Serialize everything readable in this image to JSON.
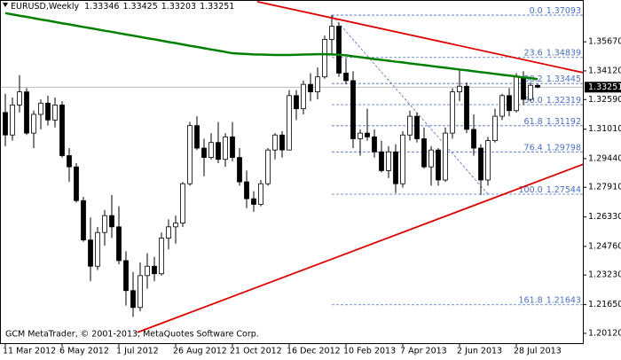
{
  "chart_data": {
    "type": "candlestick",
    "title": "EURUSD,Weekly",
    "footer": "GCM MetaTrader, © 2001-2013, MetaQuotes Software Corp.",
    "categories": [
      "11 Mar 2012",
      null,
      null,
      null,
      null,
      null,
      null,
      null,
      "6 May 2012",
      null,
      null,
      null,
      null,
      null,
      null,
      null,
      "1 Jul 2012",
      null,
      null,
      null,
      null,
      null,
      null,
      null,
      "26 Aug 2012",
      null,
      null,
      null,
      null,
      null,
      null,
      null,
      "21 Oct 2012",
      null,
      null,
      null,
      null,
      null,
      null,
      null,
      "16 Dec 2012",
      null,
      null,
      null,
      null,
      null,
      null,
      null,
      "10 Feb 2013",
      null,
      null,
      null,
      null,
      null,
      null,
      null,
      "7 Apr 2013",
      null,
      null,
      null,
      null,
      null,
      null,
      null,
      "2 Jun 2013",
      null,
      null,
      null,
      null,
      null,
      null,
      null,
      "28 Jul 2013",
      null,
      null,
      null
    ],
    "open": [
      1.319,
      1.307,
      1.323,
      1.33,
      1.308,
      1.318,
      1.324,
      1.315,
      1.323,
      1.296,
      1.29,
      1.272,
      1.251,
      1.237,
      1.255,
      1.264,
      1.258,
      1.24,
      1.224,
      1.215,
      1.232,
      1.237,
      1.233,
      1.252,
      1.258,
      1.26,
      1.281,
      1.312,
      1.3,
      1.295,
      1.303,
      1.294,
      1.306,
      1.295,
      1.282,
      1.273,
      1.27,
      1.281,
      1.299,
      1.307,
      1.299,
      1.328,
      1.321,
      1.334,
      1.33,
      1.338,
      1.358,
      1.365,
      1.34,
      1.336,
      1.305,
      1.308,
      1.306,
      1.298,
      1.288,
      1.298,
      1.281,
      1.307,
      1.317,
      1.305,
      1.29,
      1.299,
      1.283,
      1.308,
      1.33,
      1.333,
      1.31,
      1.3,
      1.283,
      1.304,
      1.317,
      1.328,
      1.32,
      1.338,
      1.326,
      1.33346
    ],
    "high": [
      1.329,
      1.327,
      1.339,
      1.332,
      1.32,
      1.326,
      1.328,
      1.327,
      1.325,
      1.3,
      1.292,
      1.274,
      1.263,
      1.258,
      1.267,
      1.275,
      1.269,
      1.245,
      1.234,
      1.239,
      1.244,
      1.242,
      1.255,
      1.262,
      1.264,
      1.282,
      1.314,
      1.317,
      1.305,
      1.308,
      1.314,
      1.308,
      1.314,
      1.3,
      1.288,
      1.277,
      1.283,
      1.3,
      1.308,
      1.309,
      1.331,
      1.331,
      1.336,
      1.34,
      1.343,
      1.36,
      1.371,
      1.367,
      1.348,
      1.341,
      1.31,
      1.321,
      1.31,
      1.304,
      1.301,
      1.302,
      1.309,
      1.32,
      1.319,
      1.311,
      1.301,
      1.3,
      1.311,
      1.332,
      1.342,
      1.335,
      1.318,
      1.302,
      1.306,
      1.321,
      1.329,
      1.332,
      1.34,
      1.341,
      1.335,
      1.33425
    ],
    "low": [
      1.301,
      1.304,
      1.319,
      1.307,
      1.3,
      1.31,
      1.312,
      1.311,
      1.295,
      1.282,
      1.271,
      1.25,
      1.229,
      1.235,
      1.248,
      1.252,
      1.238,
      1.216,
      1.21,
      1.213,
      1.225,
      1.229,
      1.232,
      1.246,
      1.249,
      1.258,
      1.28,
      1.299,
      1.285,
      1.294,
      1.292,
      1.29,
      1.293,
      1.28,
      1.268,
      1.266,
      1.269,
      1.28,
      1.294,
      1.295,
      1.299,
      1.315,
      1.318,
      1.325,
      1.326,
      1.337,
      1.35,
      1.338,
      1.334,
      1.3,
      1.296,
      1.304,
      1.295,
      1.287,
      1.284,
      1.276,
      1.279,
      1.304,
      1.303,
      1.289,
      1.28,
      1.28,
      1.282,
      1.305,
      1.325,
      1.308,
      1.296,
      1.275,
      1.28,
      1.303,
      1.315,
      1.317,
      1.319,
      1.323,
      1.325,
      1.33203
    ],
    "close": [
      1.307,
      1.323,
      1.33,
      1.308,
      1.318,
      1.324,
      1.315,
      1.323,
      1.296,
      1.29,
      1.272,
      1.251,
      1.237,
      1.255,
      1.264,
      1.258,
      1.24,
      1.224,
      1.215,
      1.232,
      1.237,
      1.233,
      1.252,
      1.258,
      1.26,
      1.281,
      1.312,
      1.3,
      1.295,
      1.303,
      1.294,
      1.306,
      1.295,
      1.282,
      1.273,
      1.27,
      1.281,
      1.299,
      1.307,
      1.299,
      1.328,
      1.321,
      1.334,
      1.33,
      1.338,
      1.358,
      1.365,
      1.34,
      1.336,
      1.305,
      1.308,
      1.306,
      1.298,
      1.288,
      1.298,
      1.281,
      1.307,
      1.317,
      1.305,
      1.29,
      1.299,
      1.283,
      1.308,
      1.33,
      1.333,
      1.31,
      1.3,
      1.283,
      1.304,
      1.317,
      1.328,
      1.32,
      1.338,
      1.326,
      1.3335,
      1.33251
    ],
    "bull_color": "#ffffff",
    "bear_color": "#000000",
    "ylim": [
      1.1955,
      1.379
    ],
    "yticks": [
      {
        "value": 1.3567,
        "label": "1.35670"
      },
      {
        "value": 1.3412,
        "label": "1.34120"
      },
      {
        "value": 1.3259,
        "label": "1.32590"
      },
      {
        "value": 1.3101,
        "label": "1.31010"
      },
      {
        "value": 1.2944,
        "label": "1.29440"
      },
      {
        "value": 1.2791,
        "label": "1.27910"
      },
      {
        "value": 1.2633,
        "label": "1.26330"
      },
      {
        "value": 1.2476,
        "label": "1.24760"
      },
      {
        "value": 1.2323,
        "label": "1.23230"
      },
      {
        "value": 1.2165,
        "label": "1.21650"
      },
      {
        "value": 1.2012,
        "label": "1.20120"
      }
    ],
    "ma": {
      "color": "#008000",
      "values": [
        1.372,
        1.3713,
        1.3706,
        1.37,
        1.3693,
        1.3686,
        1.368,
        1.3673,
        1.3666,
        1.366,
        1.3653,
        1.3646,
        1.364,
        1.3633,
        1.3626,
        1.362,
        1.3613,
        1.3606,
        1.36,
        1.3593,
        1.3586,
        1.358,
        1.3573,
        1.3566,
        1.356,
        1.3553,
        1.3546,
        1.354,
        1.3533,
        1.3526,
        1.352,
        1.3513,
        1.3506,
        1.3504,
        1.3502,
        1.35,
        1.3499,
        1.3498,
        1.3497,
        1.3497,
        1.3497,
        1.3498,
        1.3499,
        1.35,
        1.3501,
        1.3501,
        1.35,
        1.3498,
        1.3495,
        1.349,
        1.3485,
        1.348,
        1.3475,
        1.3471,
        1.3466,
        1.3461,
        1.3457,
        1.3452,
        1.3447,
        1.3443,
        1.3438,
        1.3433,
        1.3429,
        1.3424,
        1.3419,
        1.3415,
        1.341,
        1.3405,
        1.3401,
        1.3396,
        1.3391,
        1.3387,
        1.3382,
        1.3377,
        1.3373,
        1.3368
      ]
    },
    "trendlines": [
      {
        "color": "#dd0000",
        "x": [
          35.5,
          81.5
        ],
        "y": [
          1.3781,
          1.3402
        ]
      },
      {
        "color": "#dd0000",
        "x": [
          18.6,
          81.5
        ],
        "y": [
          1.2017,
          1.2915
        ]
      }
    ],
    "fib": {
      "color": "#4a6fc0",
      "x": [
        46,
        68
      ],
      "y": [
        1.37093,
        1.27544
      ],
      "levels": [
        {
          "label": "0.0",
          "value": 1.37093
        },
        {
          "label": "23.6",
          "value": 1.34839
        },
        {
          "label": "38.2",
          "value": 1.33445
        },
        {
          "label": "50.0",
          "value": 1.32319
        },
        {
          "label": "61.8",
          "value": 1.31192
        },
        {
          "label": "76.4",
          "value": 1.29798
        },
        {
          "label": "100.0",
          "value": 1.27544
        },
        {
          "label": "161.8",
          "value": 1.21643
        }
      ]
    }
  }
}
